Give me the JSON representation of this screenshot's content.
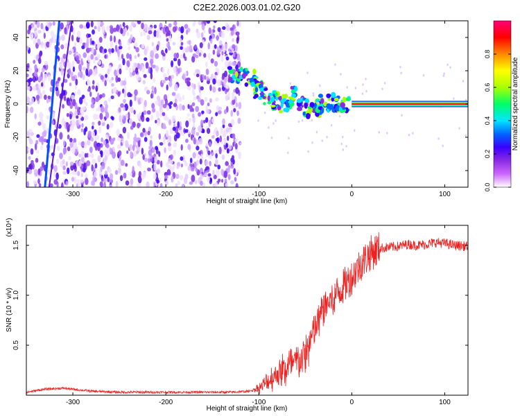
{
  "title": "C2E2.2026.003.01.02.G20",
  "chart_data": [
    {
      "type": "heatmap",
      "xlabel": "Height of straight line (km)",
      "ylabel": "Frequency (Hz)",
      "xlim": [
        -350,
        125
      ],
      "ylim": [
        -50,
        50
      ],
      "x_ticks": [
        -300,
        -200,
        -100,
        0,
        100
      ],
      "y_ticks": [
        -40,
        -20,
        0,
        20,
        40
      ],
      "colorbar": {
        "label": "Normalized spectral amplitude",
        "range": [
          0.0,
          1.0
        ],
        "ticks": [
          "0.0",
          "0.2",
          "0.4",
          "0.6",
          "0.8"
        ],
        "colormap": [
          "#ffffff",
          "#cc66ff",
          "#8a2be2",
          "#3a00ff",
          "#0066ff",
          "#00e5ff",
          "#00ff66",
          "#aaff00",
          "#ffff00",
          "#ff8800",
          "#ff0000",
          "#ff0077"
        ]
      },
      "features": {
        "noise_region_x": [
          -350,
          -120
        ],
        "steep_track": {
          "x": [
            -330,
            -325
          ],
          "y": [
            -50,
            50
          ]
        },
        "carrier_line": {
          "x": [
            0,
            125
          ],
          "y": 0
        }
      }
    },
    {
      "type": "line",
      "xlabel": "Height of straight line (km)",
      "ylabel": "SNR (10 * v/v)",
      "y_scale_label": "(x10⁴)",
      "xlim": [
        -350,
        125
      ],
      "ylim": [
        0,
        1.7
      ],
      "x_ticks": [
        -300,
        -200,
        -100,
        0,
        100
      ],
      "y_ticks": [
        "0.5",
        "1.0",
        "1.5"
      ],
      "color": "#ee2020",
      "x": [
        -350,
        -330,
        -310,
        -280,
        -250,
        -220,
        -200,
        -180,
        -150,
        -130,
        -110,
        -100,
        -90,
        -80,
        -70,
        -60,
        -50,
        -40,
        -30,
        -20,
        -10,
        0,
        10,
        20,
        30,
        40,
        50,
        60,
        70,
        80,
        90,
        100,
        110,
        125
      ],
      "y": [
        0.03,
        0.06,
        0.07,
        0.04,
        0.03,
        0.03,
        0.03,
        0.03,
        0.03,
        0.03,
        0.04,
        0.07,
        0.14,
        0.22,
        0.27,
        0.32,
        0.4,
        0.65,
        0.88,
        0.98,
        1.08,
        1.18,
        1.32,
        1.42,
        1.47,
        1.48,
        1.49,
        1.51,
        1.5,
        1.51,
        1.53,
        1.52,
        1.5,
        1.49
      ]
    }
  ]
}
